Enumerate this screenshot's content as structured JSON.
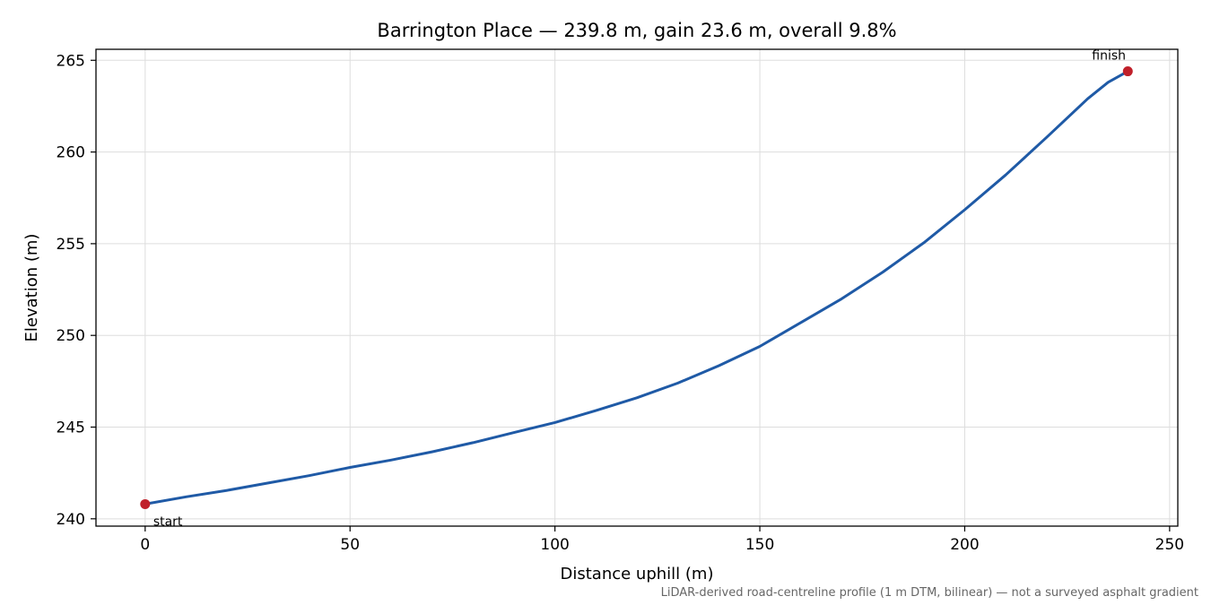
{
  "chart_data": {
    "type": "line",
    "title": "Barrington Place — 239.8 m, gain 23.6 m, overall 9.8%",
    "xlabel": "Distance uphill (m)",
    "ylabel": "Elevation (m)",
    "xlim": [
      -12,
      252
    ],
    "ylim": [
      239.6,
      265.6
    ],
    "xticks": [
      0,
      50,
      100,
      150,
      200,
      250
    ],
    "yticks": [
      240,
      245,
      250,
      255,
      260,
      265
    ],
    "grid": true,
    "line_color": "#1f5aa6",
    "marker_color": "#c0202a",
    "series": [
      {
        "x": [
          0,
          10,
          20,
          30,
          40,
          50,
          60,
          70,
          80,
          90,
          100,
          110,
          120,
          130,
          140,
          150,
          160,
          170,
          180,
          190,
          200,
          210,
          220,
          230,
          235,
          239.8
        ],
        "y": [
          240.8,
          241.2,
          241.55,
          241.95,
          242.35,
          242.8,
          243.2,
          243.65,
          244.15,
          244.7,
          245.25,
          245.9,
          246.6,
          247.4,
          248.35,
          249.4,
          250.7,
          252.0,
          253.45,
          255.05,
          256.85,
          258.75,
          260.8,
          262.9,
          263.8,
          264.4
        ]
      }
    ],
    "markers": [
      {
        "x": 0,
        "y": 240.8,
        "label": "start"
      },
      {
        "x": 239.8,
        "y": 264.4,
        "label": "finish"
      }
    ],
    "footnote": "LiDAR-derived road-centreline profile (1 m DTM, bilinear) — not a surveyed asphalt gradient"
  }
}
